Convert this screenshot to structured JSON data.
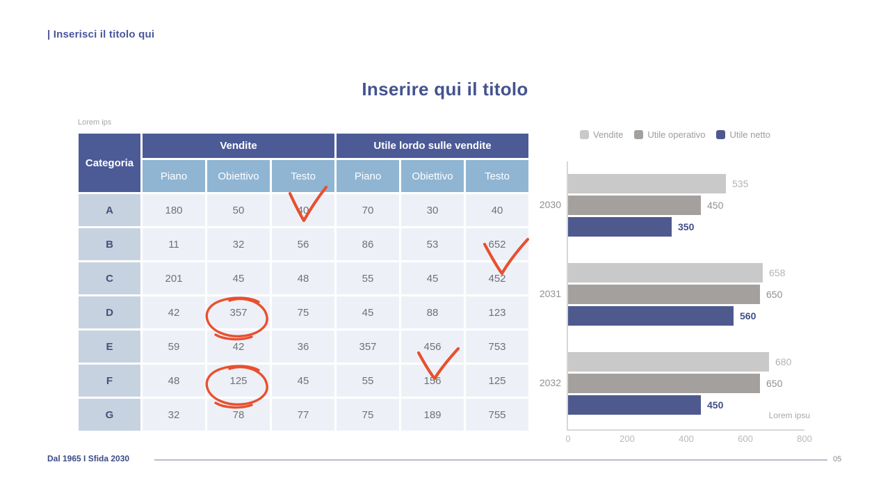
{
  "slide": {
    "header_title": "| Inserisci il titolo qui",
    "main_title": "Inserire qui il titolo",
    "footer_text": "Dal 1965 I Sfida 2030",
    "page_number": "05"
  },
  "table": {
    "caption": "Lorem ips",
    "corner_header": "Categoria",
    "group_headers": [
      "Vendite",
      "Utile lordo sulle vendite"
    ],
    "sub_headers": [
      "Piano",
      "Obiettivo",
      "Testo",
      "Piano",
      "Obiettivo",
      "Testo"
    ],
    "rows": [
      {
        "category": "A",
        "values": [
          "180",
          "50",
          "40",
          "70",
          "30",
          "40"
        ]
      },
      {
        "category": "B",
        "values": [
          "11",
          "32",
          "56",
          "86",
          "53",
          "652"
        ]
      },
      {
        "category": "C",
        "values": [
          "201",
          "45",
          "48",
          "55",
          "45",
          "452"
        ]
      },
      {
        "category": "D",
        "values": [
          "42",
          "357",
          "75",
          "45",
          "88",
          "123"
        ]
      },
      {
        "category": "E",
        "values": [
          "59",
          "42",
          "36",
          "357",
          "456",
          "753"
        ]
      },
      {
        "category": "F",
        "values": [
          "48",
          "125",
          "45",
          "55",
          "156",
          "125"
        ]
      },
      {
        "category": "G",
        "values": [
          "32",
          "78",
          "77",
          "75",
          "189",
          "755"
        ]
      }
    ],
    "colors": {
      "header_bg": "#4c5b96",
      "subheader_bg": "#8fb5d3",
      "category_bg": "#c7d2e1",
      "cell_bg": "#edf1f7"
    },
    "annotations": {
      "color": "#e8502f",
      "marks": [
        {
          "type": "check",
          "cell": "row A / Vendite Testo (40)"
        },
        {
          "type": "check",
          "cell": "row B / Utile Testo (652)"
        },
        {
          "type": "circle",
          "cell": "row D / Vendite Obiettivo (357)"
        },
        {
          "type": "check",
          "cell": "row E / Utile Obiettivo (456)"
        },
        {
          "type": "circle",
          "cell": "row F / Vendite Obiettivo (125)"
        }
      ]
    }
  },
  "chart_data": {
    "type": "bar",
    "orientation": "horizontal",
    "title": "",
    "categories": [
      "2030",
      "2031",
      "2032"
    ],
    "series": [
      {
        "name": "Vendite",
        "color": "#c9c9c9",
        "label_color": "#b3b3b3",
        "values": [
          535,
          658,
          680
        ]
      },
      {
        "name": "Utile operativo",
        "color": "#a3a09e",
        "label_color": "#8f8f8f",
        "values": [
          450,
          650,
          650
        ]
      },
      {
        "name": "Utile netto",
        "color": "#4e598e",
        "label_color": "#3f4e87",
        "values": [
          350,
          560,
          450
        ]
      }
    ],
    "xlim": [
      0,
      800
    ],
    "xticks": [
      "0",
      "200",
      "400",
      "600",
      "800"
    ],
    "legend_position": "top",
    "grid": false,
    "note": "Lorem ipsu"
  }
}
